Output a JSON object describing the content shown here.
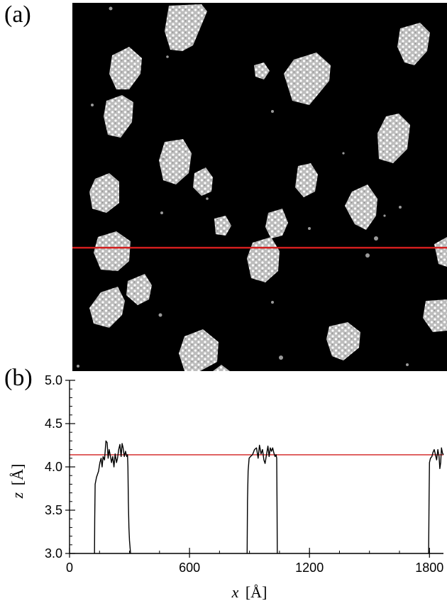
{
  "panels": {
    "a_label": "(a)",
    "b_label": "(b)"
  },
  "stm_image": {
    "background_color": "#000000",
    "island_color": "#d9d9d9",
    "line_color": "#d21e1e",
    "line_position_fraction": 0.665
  },
  "chart_data": {
    "type": "line",
    "xlabel_var": "x",
    "xlabel_unit": "[Å]",
    "ylabel_var": "z",
    "ylabel_unit": "[Å]",
    "xlim": [
      0,
      1870
    ],
    "ylim": [
      3.0,
      5.0
    ],
    "x_ticks": [
      0,
      600,
      1200,
      1800
    ],
    "x_tick_labels": [
      "0",
      "600",
      "1200",
      "1800"
    ],
    "y_ticks": [
      3.0,
      3.5,
      4.0,
      4.5,
      5.0
    ],
    "y_tick_labels": [
      "3.0",
      "3.5",
      "4.0",
      "4.5",
      "5.0"
    ],
    "reference_line": {
      "y": 4.14,
      "color": "#d21e1e"
    },
    "series": [
      {
        "color": "#000000",
        "points": [
          [
            125,
            3.0
          ],
          [
            126,
            3.4
          ],
          [
            128,
            3.8
          ],
          [
            135,
            3.88
          ],
          [
            145,
            3.95
          ],
          [
            152,
            4.05
          ],
          [
            158,
            4.1
          ],
          [
            163,
            4.0
          ],
          [
            168,
            4.12
          ],
          [
            175,
            4.08
          ],
          [
            182,
            4.3
          ],
          [
            188,
            4.28
          ],
          [
            193,
            4.1
          ],
          [
            198,
            4.2
          ],
          [
            204,
            4.13
          ],
          [
            210,
            4.05
          ],
          [
            216,
            4.12
          ],
          [
            222,
            4.0
          ],
          [
            228,
            4.15
          ],
          [
            235,
            4.05
          ],
          [
            240,
            4.1
          ],
          [
            246,
            4.2
          ],
          [
            252,
            4.26
          ],
          [
            258,
            4.12
          ],
          [
            263,
            4.27
          ],
          [
            268,
            4.22
          ],
          [
            274,
            4.12
          ],
          [
            280,
            4.18
          ],
          [
            286,
            4.12
          ],
          [
            290,
            4.14
          ],
          [
            292,
            4.0
          ],
          [
            294,
            3.6
          ],
          [
            297,
            3.3
          ],
          [
            300,
            3.15
          ],
          [
            305,
            3.0
          ]
        ]
      },
      {
        "color": "#000000",
        "points": [
          [
            888,
            3.0
          ],
          [
            890,
            3.6
          ],
          [
            893,
            3.95
          ],
          [
            898,
            4.1
          ],
          [
            905,
            4.12
          ],
          [
            915,
            4.14
          ],
          [
            925,
            4.2
          ],
          [
            935,
            4.22
          ],
          [
            943,
            4.1
          ],
          [
            950,
            4.25
          ],
          [
            958,
            4.15
          ],
          [
            965,
            4.2
          ],
          [
            972,
            4.08
          ],
          [
            978,
            4.04
          ],
          [
            985,
            4.14
          ],
          [
            992,
            4.24
          ],
          [
            998,
            4.12
          ],
          [
            1004,
            4.22
          ],
          [
            1010,
            4.18
          ],
          [
            1016,
            4.22
          ],
          [
            1022,
            4.16
          ],
          [
            1028,
            4.12
          ],
          [
            1033,
            4.14
          ],
          [
            1036,
            4.1
          ],
          [
            1038,
            3.5
          ],
          [
            1039,
            3.0
          ]
        ]
      },
      {
        "color": "#000000",
        "points": [
          [
            1796,
            3.0
          ],
          [
            1798,
            3.6
          ],
          [
            1800,
            4.05
          ],
          [
            1805,
            4.1
          ],
          [
            1812,
            4.12
          ],
          [
            1818,
            4.17
          ],
          [
            1824,
            4.2
          ],
          [
            1830,
            4.14
          ],
          [
            1836,
            4.08
          ],
          [
            1842,
            4.2
          ],
          [
            1848,
            4.12
          ],
          [
            1852,
            3.98
          ],
          [
            1856,
            4.05
          ],
          [
            1860,
            4.22
          ],
          [
            1865,
            4.16
          ],
          [
            1870,
            4.14
          ]
        ]
      }
    ]
  }
}
